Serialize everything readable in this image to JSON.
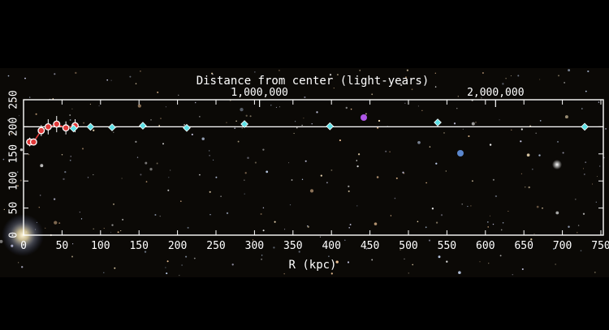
{
  "chart_data": {
    "type": "scatter",
    "top_axis_label": "Distance from center (light-years)",
    "top_ticks": [
      {
        "value": 306.6,
        "label": "1,000,000"
      },
      {
        "value": 613.2,
        "label": "2,000,000"
      }
    ],
    "xlabel": "R (kpc)",
    "xlim": [
      0,
      750
    ],
    "ylim": [
      0,
      250
    ],
    "xticks": [
      0,
      50,
      100,
      150,
      200,
      250,
      300,
      350,
      400,
      450,
      500,
      550,
      600,
      650,
      700,
      750
    ],
    "yticks": [
      0,
      50,
      100,
      150,
      200,
      250
    ],
    "reference_line": {
      "y": 200
    },
    "series": [
      {
        "color": "#e03a3a",
        "x": [
          8,
          13,
          23,
          32,
          43,
          55,
          67
        ],
        "y": [
          172,
          172,
          193,
          200,
          205,
          198,
          202
        ],
        "err": [
          8,
          6,
          10,
          14,
          15,
          12,
          12
        ]
      },
      {
        "color": "#5fe0e6",
        "x": [
          65,
          87,
          115,
          155,
          212,
          287,
          398,
          538,
          729
        ],
        "y": [
          197,
          200,
          199,
          202,
          198,
          205,
          201,
          208,
          200
        ],
        "err": [
          3,
          3,
          3,
          3,
          4,
          4,
          3,
          4,
          3
        ]
      }
    ]
  }
}
